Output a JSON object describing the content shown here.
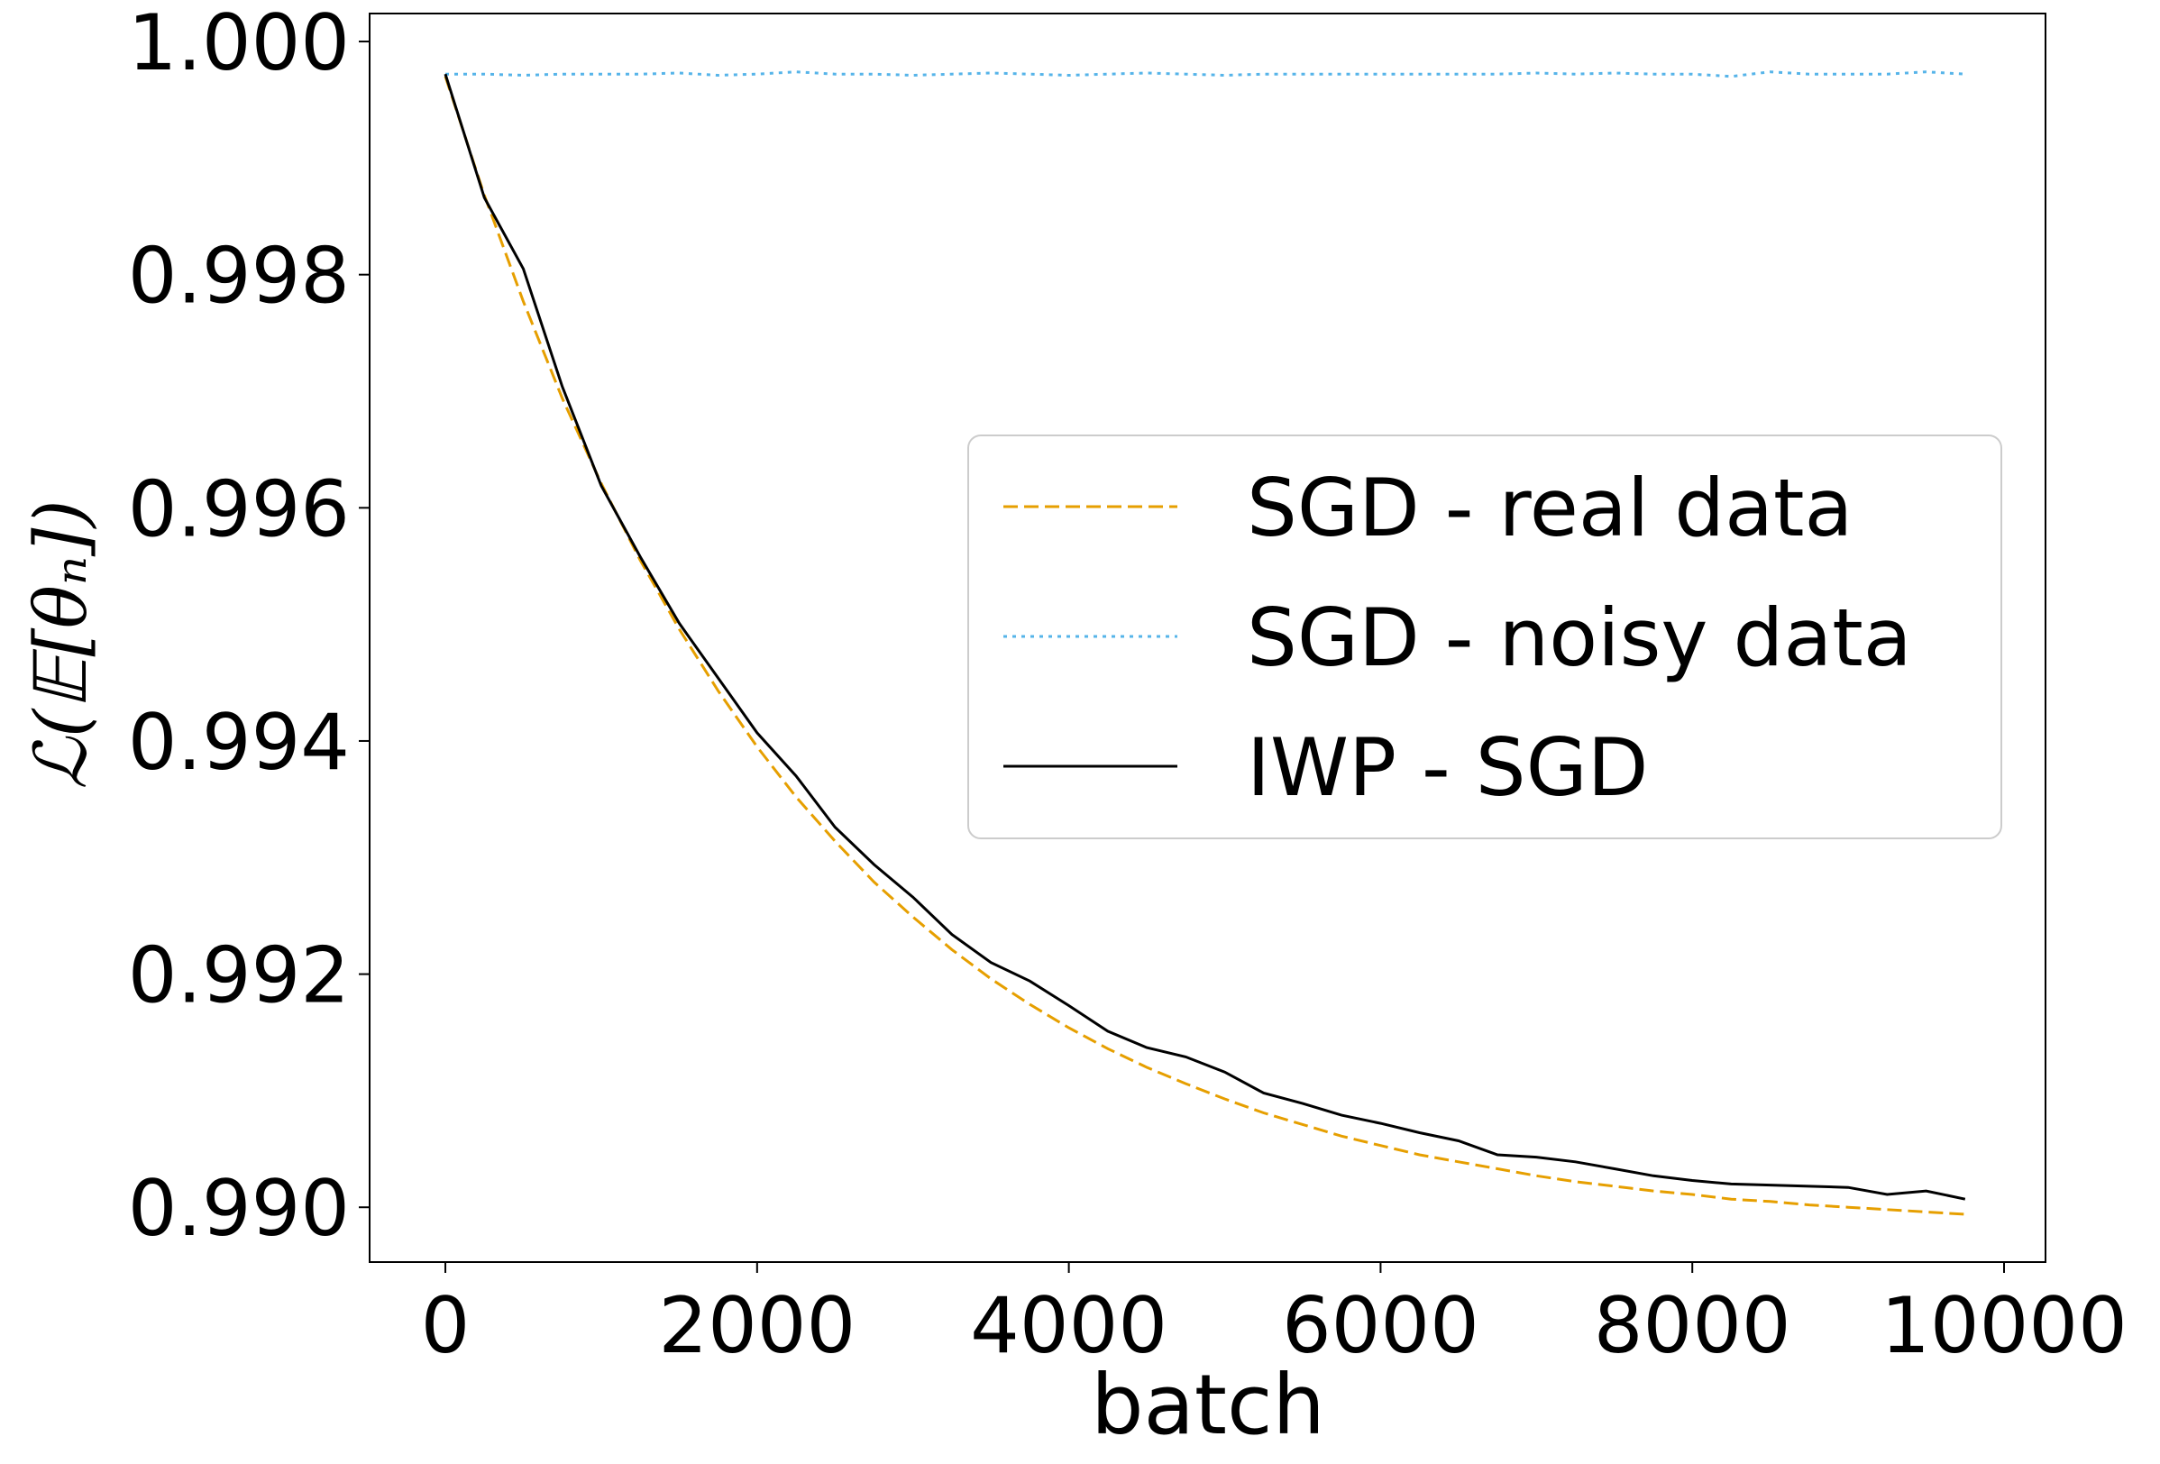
{
  "chart_data": {
    "type": "line",
    "title": "",
    "xlabel": "batch",
    "ylabel": "ℒ(𝔼[θₙ])",
    "xlim": [
      -486,
      10266
    ],
    "ylim": [
      0.98953,
      1.00024
    ],
    "xticks": [
      "0",
      "2000",
      "4000",
      "6000",
      "8000",
      "10000"
    ],
    "xtick_values": [
      0,
      2000,
      4000,
      6000,
      8000,
      10000
    ],
    "yticks": [
      "0.990",
      "0.992",
      "0.994",
      "0.996",
      "0.998",
      "1.000"
    ],
    "ytick_values": [
      0.99,
      0.992,
      0.994,
      0.996,
      0.998,
      1.0
    ],
    "grid": false,
    "legend_position": "center-right",
    "x": [
      0,
      250,
      500,
      750,
      1000,
      1250,
      1500,
      1750,
      2000,
      2250,
      2500,
      2750,
      3000,
      3250,
      3500,
      3750,
      4000,
      4250,
      4500,
      4750,
      5000,
      5250,
      5500,
      5750,
      6000,
      6250,
      6500,
      6750,
      7000,
      7250,
      7500,
      7750,
      8000,
      8250,
      8500,
      8750,
      9000,
      9250,
      9500,
      9750
    ],
    "series": [
      {
        "name": "SGD - real data",
        "color": "#E69F00",
        "style": "dashed",
        "values": [
          0.9997,
          0.99868,
          0.99777,
          0.99694,
          0.99621,
          0.99555,
          0.99496,
          0.99443,
          0.99395,
          0.99352,
          0.99314,
          0.99279,
          0.99249,
          0.99221,
          0.99196,
          0.99174,
          0.99154,
          0.99136,
          0.9912,
          0.99106,
          0.99093,
          0.99081,
          0.99071,
          0.99061,
          0.99053,
          0.99045,
          0.99039,
          0.99033,
          0.99027,
          0.99022,
          0.99018,
          0.99014,
          0.99011,
          0.99007,
          0.99005,
          0.99002,
          0.99,
          0.98998,
          0.98996,
          0.98994
        ]
      },
      {
        "name": "SGD - noisy data",
        "color": "#56B4E9",
        "style": "dotted",
        "values": [
          0.99972,
          0.99972,
          0.99971,
          0.99972,
          0.99972,
          0.99972,
          0.99973,
          0.99971,
          0.99972,
          0.99974,
          0.99972,
          0.99972,
          0.99971,
          0.99972,
          0.99973,
          0.99972,
          0.99971,
          0.99972,
          0.99973,
          0.99972,
          0.99971,
          0.99972,
          0.99972,
          0.99972,
          0.99972,
          0.99972,
          0.99972,
          0.99972,
          0.99973,
          0.99972,
          0.99973,
          0.99972,
          0.99972,
          0.9997,
          0.99974,
          0.99972,
          0.99972,
          0.99972,
          0.99974,
          0.99972
        ]
      },
      {
        "name": "IWP - SGD",
        "color": "#000000",
        "style": "solid",
        "values": [
          0.99972,
          0.99866,
          0.99805,
          0.99704,
          0.99619,
          0.99558,
          0.99501,
          0.99454,
          0.99407,
          0.9937,
          0.99326,
          0.99294,
          0.99266,
          0.99234,
          0.9921,
          0.99194,
          0.99173,
          0.99151,
          0.99137,
          0.99129,
          0.99116,
          0.99098,
          0.99089,
          0.99079,
          0.99072,
          0.99064,
          0.99057,
          0.99045,
          0.99043,
          0.99039,
          0.99033,
          0.99027,
          0.99023,
          0.9902,
          0.99019,
          0.99018,
          0.99017,
          0.99011,
          0.99014,
          0.99007
        ]
      }
    ]
  }
}
